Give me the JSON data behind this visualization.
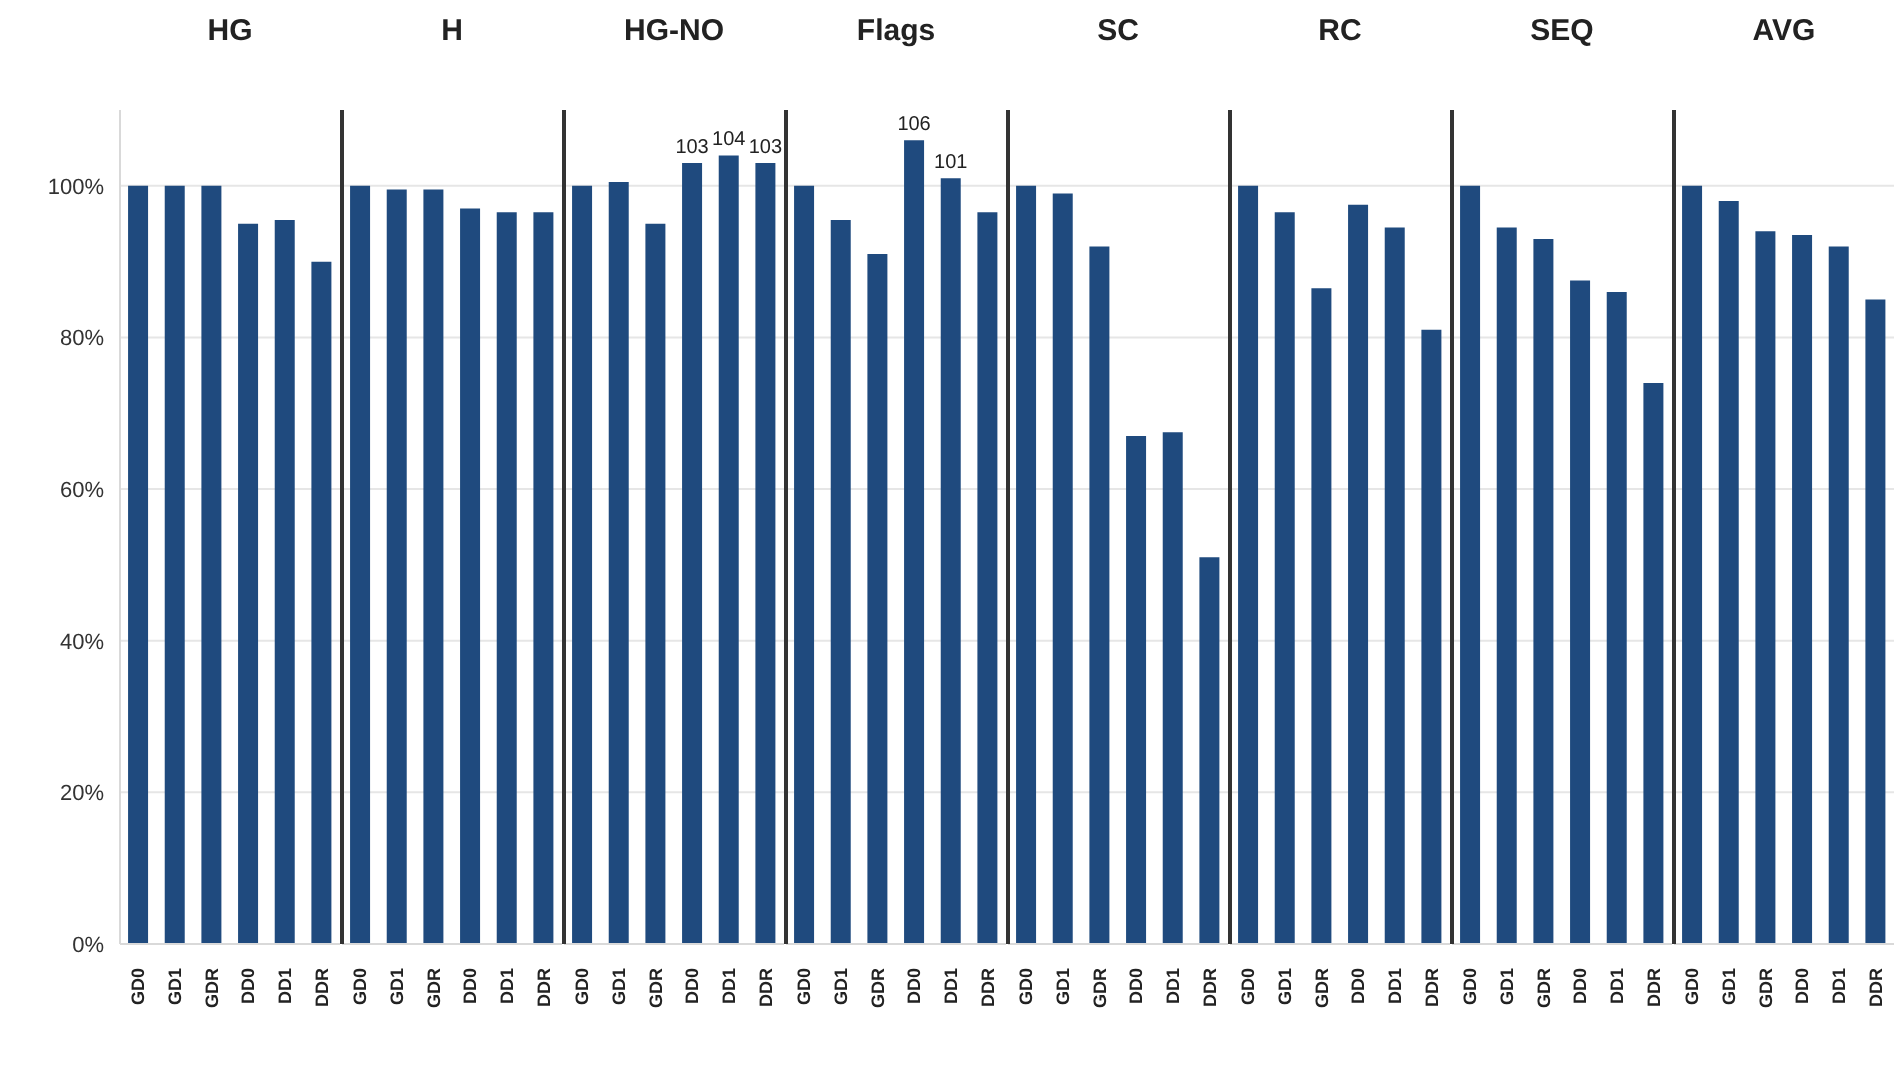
{
  "chart_data": [
    {
      "type": "bar",
      "title": "HG",
      "categories": [
        "GD0",
        "GD1",
        "GDR",
        "DD0",
        "DD1",
        "DDR"
      ],
      "values": [
        100,
        100,
        100,
        95,
        95.5,
        90
      ],
      "color": "#1f4a7e",
      "ylim": [
        0,
        110
      ],
      "yticks": [
        {
          "value": 0,
          "label": "0%"
        },
        {
          "value": 20,
          "label": "20%"
        },
        {
          "value": 40,
          "label": "40%"
        },
        {
          "value": 60,
          "label": "60%"
        },
        {
          "value": 80,
          "label": "80%"
        },
        {
          "value": 100,
          "label": "100%"
        }
      ],
      "grid": "y"
    },
    {
      "type": "bar",
      "title": "H",
      "categories": [
        "GD0",
        "GD1",
        "GDR",
        "DD0",
        "DD1",
        "DDR"
      ],
      "values": [
        100,
        99.5,
        99.5,
        97,
        96.5,
        96.5
      ],
      "color": "#1f4a7e",
      "ylim": [
        0,
        110
      ],
      "yticks": [
        0,
        20,
        40,
        60,
        80,
        100
      ],
      "grid": "y",
      "tick_labels": "x"
    },
    {
      "type": "bar",
      "title": "HG-NO",
      "categories": [
        "GD0",
        "GD1",
        "GDR",
        "DD0",
        "DD1",
        "DDR"
      ],
      "values": [
        100,
        100.5,
        95,
        103,
        104,
        103
      ],
      "value_labels": [
        null,
        null,
        null,
        "103",
        "104",
        "103"
      ],
      "color": "#1f4a7e",
      "ylim": [
        0,
        110
      ],
      "yticks": [
        0,
        20,
        40,
        60,
        80,
        100
      ],
      "grid": "y",
      "tick_labels": "x"
    },
    {
      "type": "bar",
      "title": "Flags",
      "categories": [
        "GD0",
        "GD1",
        "GDR",
        "DD0",
        "DD1",
        "DDR"
      ],
      "values": [
        100,
        95.5,
        91,
        106,
        101,
        96.5
      ],
      "value_labels": [
        null,
        null,
        null,
        "106",
        "101",
        null
      ],
      "color": "#1f4a7e",
      "ylim": [
        0,
        110
      ],
      "yticks": [
        0,
        20,
        40,
        60,
        80,
        100
      ],
      "grid": "y",
      "tick_labels": "x"
    },
    {
      "type": "bar",
      "title": "SC",
      "categories": [
        "GD0",
        "GD1",
        "GDR",
        "DD0",
        "DD1",
        "DDR"
      ],
      "values": [
        100,
        99,
        92,
        67,
        67.5,
        51
      ],
      "color": "#1f4a7e",
      "ylim": [
        0,
        110
      ],
      "yticks": [
        0,
        20,
        40,
        60,
        80,
        100
      ],
      "grid": "y",
      "tick_labels": "x"
    },
    {
      "type": "bar",
      "title": "RC",
      "categories": [
        "GD0",
        "GD1",
        "GDR",
        "DD0",
        "DD1",
        "DDR"
      ],
      "values": [
        100,
        96.5,
        86.5,
        97.5,
        94.5,
        81
      ],
      "color": "#1f4a7e",
      "ylim": [
        0,
        110
      ],
      "yticks": [
        0,
        20,
        40,
        60,
        80,
        100
      ],
      "grid": "y",
      "tick_labels": "x"
    },
    {
      "type": "bar",
      "title": "SEQ",
      "categories": [
        "GD0",
        "GD1",
        "GDR",
        "DD0",
        "DD1",
        "DDR"
      ],
      "values": [
        100,
        94.5,
        93,
        87.5,
        86,
        74
      ],
      "color": "#1f4a7e",
      "ylim": [
        0,
        110
      ],
      "yticks": [
        0,
        20,
        40,
        60,
        80,
        100
      ],
      "grid": "y",
      "tick_labels": "x"
    },
    {
      "type": "bar",
      "title": "AVG",
      "categories": [
        "GD0",
        "GD1",
        "GDR",
        "DD0",
        "DD1",
        "DDR"
      ],
      "values": [
        100,
        98,
        94,
        93.5,
        92,
        85
      ],
      "color": "#1f4a7e",
      "ylim": [
        0,
        110
      ],
      "yticks": [
        0,
        20,
        40,
        60,
        80,
        100
      ],
      "grid": "y",
      "tick_labels": "x"
    }
  ]
}
